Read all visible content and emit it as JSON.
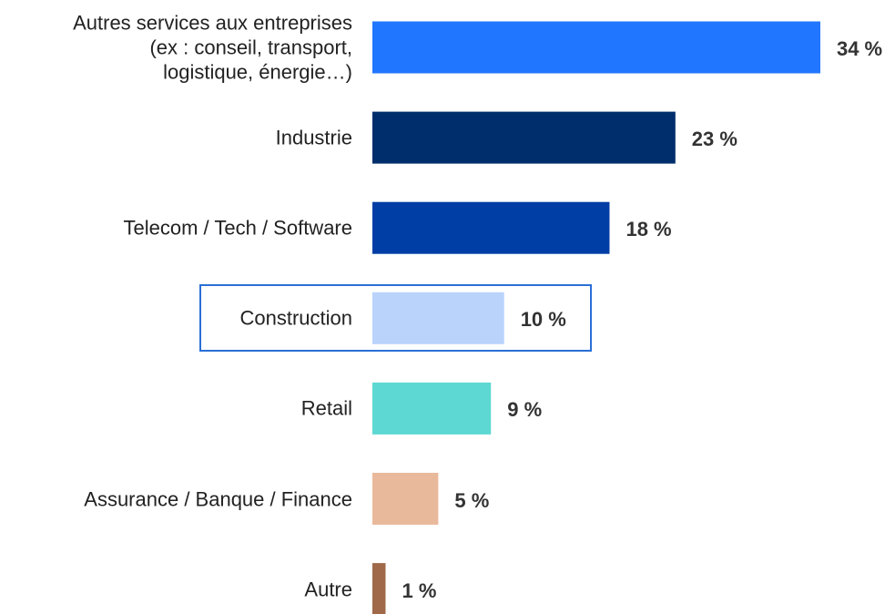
{
  "chart_data": {
    "type": "bar",
    "orientation": "horizontal",
    "categories": [
      "Autres services aux entreprises\n(ex : conseil, transport,\nlogistique, énergie…)",
      "Industrie",
      "Telecom / Tech / Software",
      "Construction",
      "Retail",
      "Assurance / Banque / Finance",
      "Autre"
    ],
    "values": [
      34,
      23,
      18,
      10,
      9,
      5,
      1
    ],
    "value_labels": [
      "34 %",
      "23 %",
      "18 %",
      "10 %",
      "9 %",
      "5 %",
      "1 %"
    ],
    "colors": [
      "#2176ff",
      "#002d6b",
      "#003da5",
      "#b9d3fb",
      "#5dd8d2",
      "#e9b99c",
      "#a0694a"
    ]
  }
}
